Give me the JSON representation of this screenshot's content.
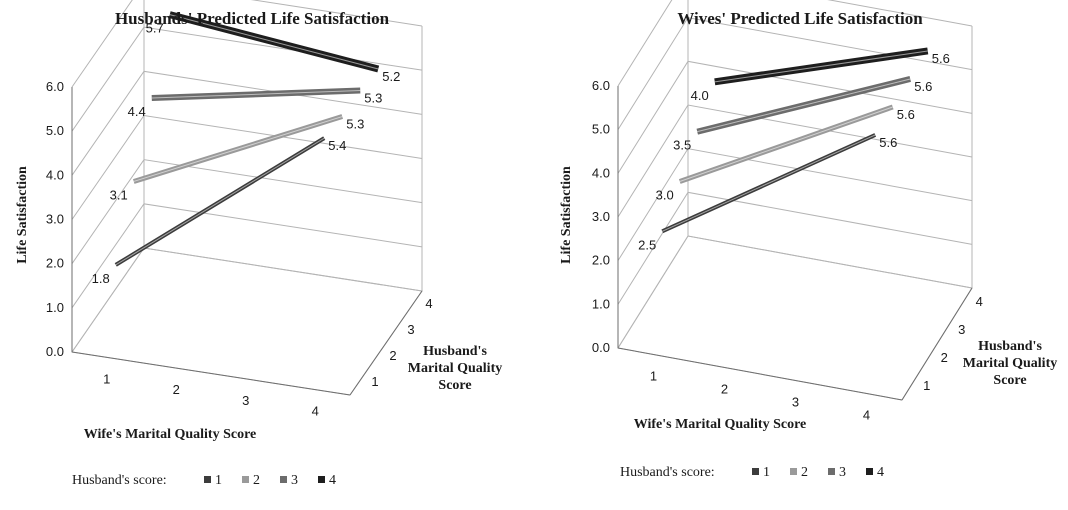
{
  "chart_data": [
    {
      "type": "line",
      "title": "Husbands' Predicted Life Satisfaction",
      "ylabel": "Life Satisfaction",
      "xlabel": "Wife's Marital Quality Score",
      "zlabel": [
        "Husband's",
        "Marital Quality",
        "Score"
      ],
      "ylim": [
        0,
        6
      ],
      "yticks": [
        "0.0",
        "1.0",
        "2.0",
        "3.0",
        "4.0",
        "5.0",
        "6.0"
      ],
      "xticks": [
        "1",
        "2",
        "3",
        "4"
      ],
      "zticks": [
        "1",
        "2",
        "3",
        "4"
      ],
      "legend_title": "Husband's score:",
      "legend_position": "bottom",
      "series": [
        {
          "name": "1",
          "x": [
            1,
            4
          ],
          "z": 1,
          "y": [
            1.8,
            5.4
          ],
          "labels": [
            "1.8",
            "5.4"
          ]
        },
        {
          "name": "2",
          "x": [
            1,
            4
          ],
          "z": 2,
          "y": [
            3.1,
            5.3
          ],
          "labels": [
            "3.1",
            "5.3"
          ]
        },
        {
          "name": "3",
          "x": [
            1,
            4
          ],
          "z": 3,
          "y": [
            4.4,
            5.3
          ],
          "labels": [
            "4.4",
            "5.3"
          ]
        },
        {
          "name": "4",
          "x": [
            1,
            4
          ],
          "z": 4,
          "y": [
            5.7,
            5.2
          ],
          "labels": [
            "5.7",
            "5.2"
          ]
        }
      ]
    },
    {
      "type": "line",
      "title": "Wives' Predicted Life Satisfaction",
      "ylabel": "Life Satisfaction",
      "xlabel": "Wife's Marital Quality Score",
      "zlabel": [
        "Husband's",
        "Marital Quality",
        "Score"
      ],
      "ylim": [
        0,
        6
      ],
      "yticks": [
        "0.0",
        "1.0",
        "2.0",
        "3.0",
        "4.0",
        "5.0",
        "6.0"
      ],
      "xticks": [
        "1",
        "2",
        "3",
        "4"
      ],
      "zticks": [
        "1",
        "2",
        "3",
        "4"
      ],
      "legend_title": "Husband's score:",
      "legend_position": "bottom",
      "series": [
        {
          "name": "1",
          "x": [
            1,
            4
          ],
          "z": 1,
          "y": [
            2.5,
            5.6
          ],
          "labels": [
            "2.5",
            "5.6"
          ]
        },
        {
          "name": "2",
          "x": [
            1,
            4
          ],
          "z": 2,
          "y": [
            3.0,
            5.6
          ],
          "labels": [
            "3.0",
            "5.6"
          ]
        },
        {
          "name": "3",
          "x": [
            1,
            4
          ],
          "z": 3,
          "y": [
            3.5,
            5.6
          ],
          "labels": [
            "3.5",
            "5.6"
          ]
        },
        {
          "name": "4",
          "x": [
            1,
            4
          ],
          "z": 4,
          "y": [
            4.0,
            5.6
          ],
          "labels": [
            "4.0",
            "5.6"
          ]
        }
      ]
    }
  ],
  "colors": {
    "series": [
      "#3c3c3c",
      "#9a9a9a",
      "#6c6c6c",
      "#1e1e1e"
    ],
    "grid": "#b4b4b4",
    "axis": "#6e6e6e",
    "text": "#1a1a1a"
  }
}
